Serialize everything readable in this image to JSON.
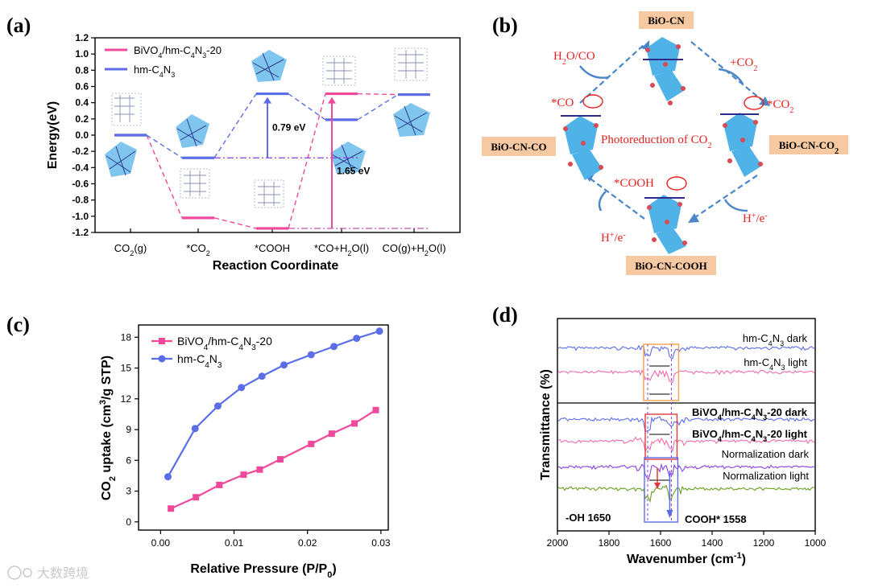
{
  "chart_data": [
    {
      "panel": "(a)",
      "type": "line",
      "xlabel": "Reaction Coordinate",
      "ylabel": "Energy(eV)",
      "ylim": [
        -1.2,
        1.2
      ],
      "yticks": [
        -1.2,
        -1.0,
        -0.8,
        -0.6,
        -0.4,
        -0.2,
        0.0,
        0.2,
        0.4,
        0.6,
        0.8,
        1.0,
        1.2
      ],
      "ytick_labels": [
        "-1.2",
        "-1.0",
        "-0.8",
        "-0.6",
        "-0.4",
        "-0.2",
        "0.0",
        "0.2",
        "0.4",
        "0.6",
        "0.8",
        "1.0",
        "1.2"
      ],
      "categories": [
        "CO2(g)",
        "*CO2",
        "*COOH",
        "*CO+H2O(l)",
        "CO(g)+H2O(l)"
      ],
      "category_labels": [
        {
          "main": "CO",
          "sub": "2",
          "tail": "(g)"
        },
        {
          "main": "*CO",
          "sub": "2",
          "tail": ""
        },
        {
          "main": "*COOH",
          "sub": "",
          "tail": ""
        },
        {
          "main": "*CO+H",
          "sub": "2",
          "tail": "O(l)"
        },
        {
          "main": "CO(g)+H",
          "sub": "2",
          "tail": "O(l)"
        }
      ],
      "series": [
        {
          "name": "BiVO4/hm-C4N3-20",
          "color": "#f0499b",
          "values": [
            0.0,
            -1.02,
            -1.15,
            0.51,
            0.5
          ]
        },
        {
          "name": "hm-C4N3",
          "color": "#5b6ee8",
          "values": [
            0.0,
            -0.28,
            0.51,
            0.19,
            0.5
          ]
        }
      ],
      "legend": {
        "items": [
          {
            "main": "BiVO",
            "s1": "4",
            "mid": "/hm-C",
            "s2": "4",
            "m2": "N",
            "s3": "3",
            "tail": "-20",
            "color": "#f0499b"
          },
          {
            "main": "hm-C",
            "s1": "4",
            "mid": "N",
            "s2": "3",
            "m2": "",
            "s3": "",
            "tail": "",
            "color": "#5b6ee8"
          }
        ],
        "position": "top-left"
      },
      "annotations": [
        {
          "text": "0.79 eV",
          "color": "#5b6ee8"
        },
        {
          "text": "1.65 eV",
          "color": "#f0499b"
        }
      ]
    },
    {
      "panel": "(c)",
      "type": "line",
      "xlabel": "Relative Pressure (P/P0)",
      "ylabel": "CO2 uptake (cm3/g STP)",
      "xlim": [
        -0.003,
        0.031
      ],
      "ylim": [
        -0.8,
        19.2
      ],
      "xticks": [
        0.0,
        0.01,
        0.02,
        0.03
      ],
      "xtick_labels": [
        "0.00",
        "0.01",
        "0.02",
        "0.03"
      ],
      "yticks": [
        0,
        3,
        6,
        9,
        12,
        15,
        18
      ],
      "ytick_labels": [
        "0",
        "3",
        "6",
        "9",
        "12",
        "15",
        "18"
      ],
      "series": [
        {
          "name": "BiVO4/hm-C4N3-20",
          "color": "#f0499b",
          "marker": "square",
          "x": [
            0.0014,
            0.0048,
            0.008,
            0.0113,
            0.0135,
            0.0163,
            0.0205,
            0.0233,
            0.0264,
            0.0293
          ],
          "y": [
            1.3,
            2.4,
            3.6,
            4.6,
            5.1,
            6.1,
            7.6,
            8.6,
            9.6,
            10.9
          ]
        },
        {
          "name": "hm-C4N3",
          "color": "#5b6ee8",
          "marker": "circle",
          "x": [
            0.001,
            0.0047,
            0.0078,
            0.011,
            0.0138,
            0.0168,
            0.0205,
            0.0236,
            0.0267,
            0.0298
          ],
          "y": [
            4.4,
            9.1,
            11.3,
            13.1,
            14.2,
            15.3,
            16.3,
            17.1,
            17.9,
            18.6
          ]
        }
      ],
      "legend": {
        "items": [
          {
            "main": "BiVO",
            "s1": "4",
            "mid": "/hm-C",
            "s2": "4",
            "m2": "N",
            "s3": "3",
            "tail": "-20",
            "color": "#f0499b"
          },
          {
            "main": "hm-C",
            "s1": "4",
            "mid": "N",
            "s2": "3",
            "m2": "",
            "s3": "",
            "tail": "",
            "color": "#5b6ee8"
          }
        ],
        "position": "top-left"
      }
    },
    {
      "panel": "(d)",
      "type": "line",
      "xlabel": "Wavenumber (cm-1)",
      "ylabel": "Transmittance (%)",
      "xlim": [
        2000,
        1000
      ],
      "xticks": [
        2000,
        1800,
        1600,
        1400,
        1200,
        1000
      ],
      "xtick_labels": [
        "2000",
        "1800",
        "1600",
        "1400",
        "1200",
        "1000"
      ],
      "series": [
        {
          "name": "hm-C4N3 dark",
          "color": "#5b6ee8"
        },
        {
          "name": "hm-C4N3 light",
          "color": "#f06cb0"
        },
        {
          "name": "BiVO4/hm-C4N3-20 dark",
          "color": "#5b6ee8"
        },
        {
          "name": "BiVO4/hm-C4N3-20 light",
          "color": "#f06cb0"
        },
        {
          "name": "Normalization dark",
          "color": "#8b3fe0"
        },
        {
          "name": "Normalization light",
          "color": "#6a9e1f"
        }
      ],
      "series_labels": [
        {
          "main": "hm-C",
          "s1": "4",
          "mid": "N",
          "s2": "3",
          "tail": " dark"
        },
        {
          "main": "hm-C",
          "s1": "4",
          "mid": "N",
          "s2": "3",
          "tail": " light"
        },
        {
          "main": "BiVO",
          "s1": "4",
          "mid": "/hm-C",
          "s2": "4",
          "m2": "N",
          "s3": "3",
          "tail": "-20 dark"
        },
        {
          "main": "BiVO",
          "s1": "4",
          "mid": "/hm-C",
          "s2": "4",
          "m2": "N",
          "s3": "3",
          "tail": "-20 light"
        },
        {
          "main": "Normalization dark"
        },
        {
          "main": "Normalization light"
        }
      ],
      "annotations": [
        {
          "text": "-OH 1650",
          "x": 1650
        },
        {
          "text": "COOH* 1558",
          "x": 1558
        }
      ]
    }
  ],
  "diagram": {
    "panel": "(b)",
    "title": "Photoreduction of CO2",
    "states": [
      "BiO-CN",
      "BiO-CN-CO2",
      "BiO-CN-COOH",
      "BiO-CN-CO"
    ],
    "steps": [
      "+CO2",
      "H+/e-",
      "H+/e-",
      "H2O/CO"
    ],
    "adsorbates": [
      "*CO2",
      "*COOH",
      "*CO"
    ],
    "colors": {
      "label": "#e4221f",
      "box": "#f7c9a3",
      "arrow": "#4a86c8"
    }
  },
  "watermark": "大数跨境"
}
